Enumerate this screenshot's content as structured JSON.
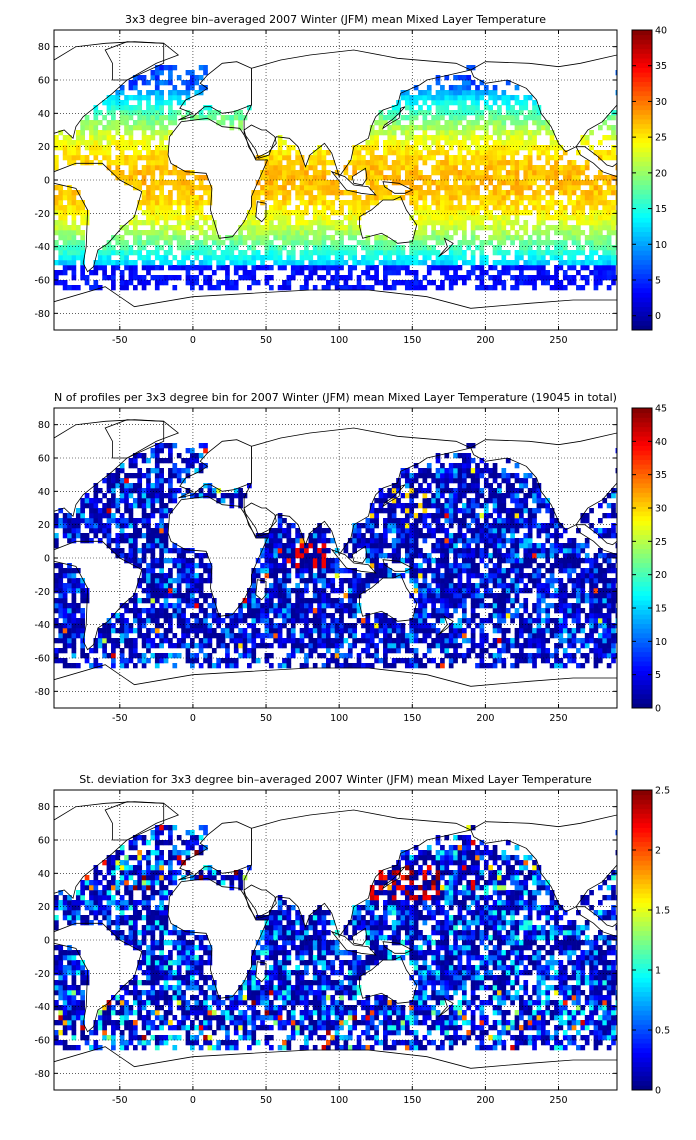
{
  "chart_data": [
    {
      "type": "heatmap",
      "title": "3x3 degree bin–averaged 2007 Winter (JFM) mean Mixed Layer Temperature",
      "xlim": [
        -95,
        290
      ],
      "ylim": [
        -90,
        90
      ],
      "xticks": [
        -50,
        0,
        50,
        100,
        150,
        200,
        250
      ],
      "yticks": [
        -80,
        -60,
        -40,
        -20,
        0,
        20,
        40,
        60,
        80
      ],
      "grid": true,
      "colorbar": {
        "min": -2,
        "max": 40,
        "ticks": [
          0,
          5,
          10,
          15,
          20,
          25,
          30,
          35,
          40
        ]
      },
      "bin_size_deg": 3,
      "field": "mean_mld_temperature"
    },
    {
      "type": "heatmap",
      "title": "N of profiles per 3x3 degree bin for 2007 Winter (JFM) mean Mixed Layer Temperature  (19045 in total)",
      "xlim": [
        -95,
        290
      ],
      "ylim": [
        -90,
        90
      ],
      "xticks": [
        -50,
        0,
        50,
        100,
        150,
        200,
        250
      ],
      "yticks": [
        -80,
        -60,
        -40,
        -20,
        0,
        20,
        40,
        60,
        80
      ],
      "grid": true,
      "colorbar": {
        "min": 0,
        "max": 45,
        "ticks": [
          0,
          5,
          10,
          15,
          20,
          25,
          30,
          35,
          40,
          45
        ]
      },
      "bin_size_deg": 3,
      "field": "profile_count"
    },
    {
      "type": "heatmap",
      "title": "St. deviation for 3x3 degree bin–averaged 2007 Winter (JFM) mean Mixed Layer Temperature",
      "xlim": [
        -95,
        290
      ],
      "ylim": [
        -90,
        90
      ],
      "xticks": [
        -50,
        0,
        50,
        100,
        150,
        200,
        250
      ],
      "yticks": [
        -80,
        -60,
        -40,
        -20,
        0,
        20,
        40,
        60,
        80
      ],
      "grid": true,
      "colorbar": {
        "min": 0,
        "max": 2.5,
        "ticks": [
          0,
          0.5,
          1,
          1.5,
          2,
          2.5
        ]
      },
      "bin_size_deg": 3,
      "field": "std_deviation"
    }
  ]
}
